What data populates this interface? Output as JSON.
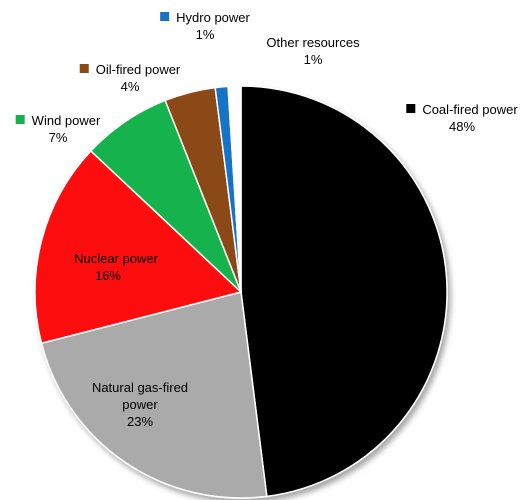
{
  "chart_data": {
    "type": "pie",
    "slices": [
      {
        "label": "Coal-fired power",
        "display": "48%",
        "value": 48,
        "color": "#000000"
      },
      {
        "label": "Natural gas-fired power",
        "display": "23%",
        "value": 23,
        "color": "#aaaaaa"
      },
      {
        "label": "Nuclear power",
        "display": "16%",
        "value": 16,
        "color": "#fd0d0d"
      },
      {
        "label": "Wind power",
        "display": "7%",
        "value": 7,
        "color": "#14b24e"
      },
      {
        "label": "Oil-fired power",
        "display": "4%",
        "value": 4,
        "color": "#8a4a12"
      },
      {
        "label": "Hydro power",
        "display": "1%",
        "value": 1,
        "color": "#1873c6"
      },
      {
        "label": "Other resources",
        "display": "1%",
        "value": 1,
        "color": "#ffffff"
      }
    ]
  }
}
